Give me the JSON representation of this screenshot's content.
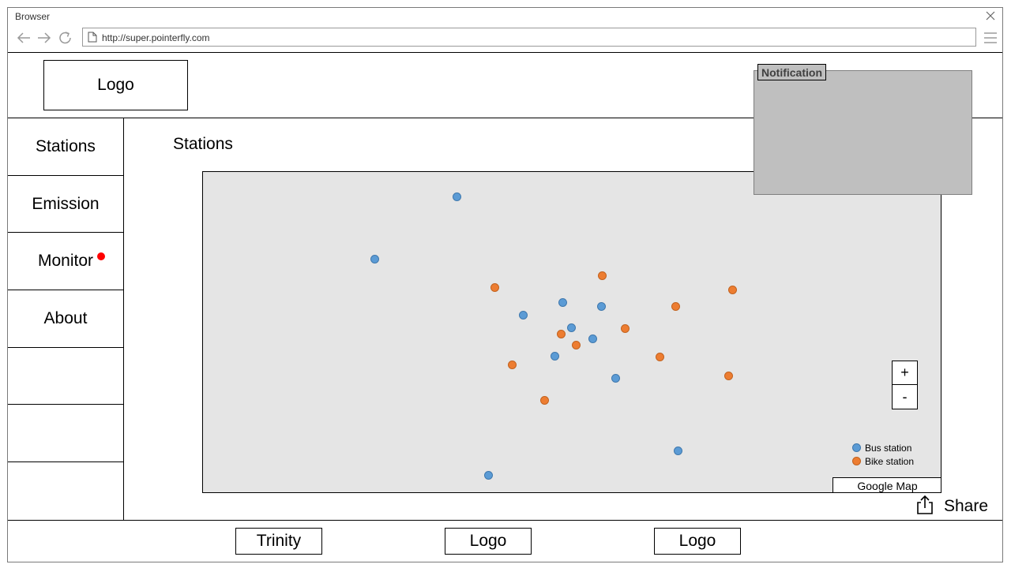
{
  "browser": {
    "title": "Browser",
    "url": "http://super.pointerfly.com"
  },
  "header": {
    "logo": "Logo"
  },
  "sidebar": {
    "items": [
      {
        "label": "Stations"
      },
      {
        "label": "Emission"
      },
      {
        "label": "Monitor",
        "has_notification_dot": true
      },
      {
        "label": "About"
      },
      {
        "label": ""
      },
      {
        "label": ""
      },
      {
        "label": ""
      }
    ]
  },
  "main": {
    "title": "Stations"
  },
  "map": {
    "legend": {
      "bus_label": "Bus station",
      "bike_label": "Bike station"
    },
    "zoom_in": "+",
    "zoom_out": "-",
    "provider_label": "Google Map"
  },
  "notification": {
    "title": "Notification"
  },
  "share": {
    "label": "Share"
  },
  "footer": {
    "items": [
      "Trinity",
      "Logo",
      "Logo"
    ]
  },
  "colors": {
    "bus": "#5b9bd5",
    "bike": "#ed7d31",
    "map_bg": "#e5e5e5",
    "notification_bg": "#bfbfbf",
    "alert_dot": "#ff0000"
  },
  "icons": [
    "close-icon",
    "back-arrow-icon",
    "forward-arrow-icon",
    "reload-icon",
    "page-icon",
    "hamburger-menu-icon",
    "share-icon"
  ]
}
